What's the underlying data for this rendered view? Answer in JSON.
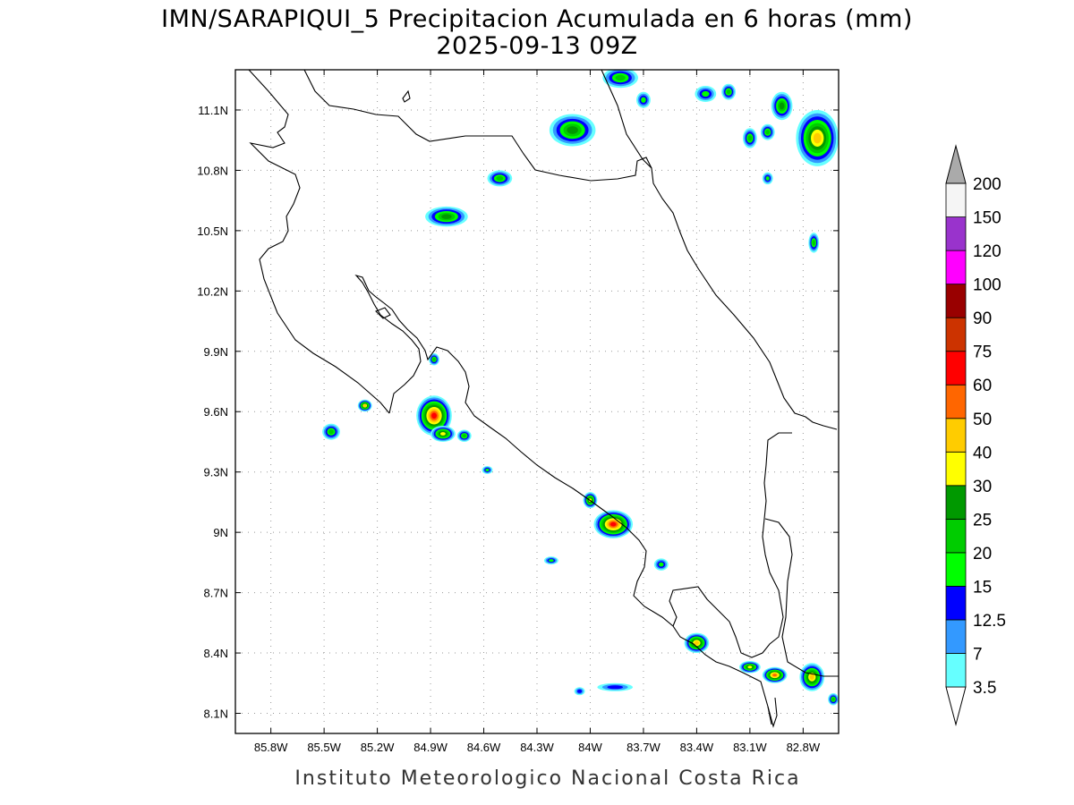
{
  "title": {
    "line1": "IMN/SARAPIQUI_5 Precipitacion Acumulada en 6 horas (mm)",
    "line2": "2025-09-13 09Z"
  },
  "credit": "Instituto Meteorologico Nacional Costa Rica",
  "map": {
    "lon_range": [
      -86.0,
      -82.6
    ],
    "lat_range": [
      8.0,
      11.3
    ],
    "lon_ticks": [
      {
        "value": -85.8,
        "label": "85.8W"
      },
      {
        "value": -85.5,
        "label": "85.5W"
      },
      {
        "value": -85.2,
        "label": "85.2W"
      },
      {
        "value": -84.9,
        "label": "84.9W"
      },
      {
        "value": -84.6,
        "label": "84.6W"
      },
      {
        "value": -84.3,
        "label": "84.3W"
      },
      {
        "value": -84.0,
        "label": "84W"
      },
      {
        "value": -83.7,
        "label": "83.7W"
      },
      {
        "value": -83.4,
        "label": "83.4W"
      },
      {
        "value": -83.1,
        "label": "83.1W"
      },
      {
        "value": -82.8,
        "label": "82.8W"
      }
    ],
    "lat_ticks": [
      {
        "value": 8.1,
        "label": "8.1N"
      },
      {
        "value": 8.4,
        "label": "8.4N"
      },
      {
        "value": 8.7,
        "label": "8.7N"
      },
      {
        "value": 9.0,
        "label": "9N"
      },
      {
        "value": 9.3,
        "label": "9.3N"
      },
      {
        "value": 9.6,
        "label": "9.6N"
      },
      {
        "value": 9.9,
        "label": "9.9N"
      },
      {
        "value": 10.2,
        "label": "10.2N"
      },
      {
        "value": 10.5,
        "label": "10.5N"
      },
      {
        "value": 10.8,
        "label": "10.8N"
      },
      {
        "value": 11.1,
        "label": "11.1N"
      }
    ],
    "grid": true
  },
  "legend": {
    "bins": [
      {
        "label": "3.5",
        "color": "#66ffff"
      },
      {
        "label": "7",
        "color": "#3399ff"
      },
      {
        "label": "12.5",
        "color": "#0000ff"
      },
      {
        "label": "15",
        "color": "#00ff00"
      },
      {
        "label": "20",
        "color": "#00cc00"
      },
      {
        "label": "25",
        "color": "#009900"
      },
      {
        "label": "30",
        "color": "#ffff00"
      },
      {
        "label": "40",
        "color": "#ffcc00"
      },
      {
        "label": "50",
        "color": "#ff6600"
      },
      {
        "label": "60",
        "color": "#ff0000"
      },
      {
        "label": "75",
        "color": "#cc3300"
      },
      {
        "label": "90",
        "color": "#990000"
      },
      {
        "label": "100",
        "color": "#ff00ff"
      },
      {
        "label": "120",
        "color": "#9933cc"
      },
      {
        "label": "150",
        "color": "#f5f5f5"
      },
      {
        "label": "200",
        "color": "#aaaaaa"
      }
    ],
    "below_color": "#ffffff",
    "above_color": "#aaaaaa"
  },
  "cells": [
    {
      "lon": -84.1,
      "lat": 11.0,
      "rx": 0.13,
      "ry": 0.08,
      "level": 5
    },
    {
      "lon": -83.83,
      "lat": 11.26,
      "rx": 0.1,
      "ry": 0.05,
      "level": 4
    },
    {
      "lon": -83.7,
      "lat": 11.15,
      "rx": 0.04,
      "ry": 0.04,
      "level": 3
    },
    {
      "lon": -83.35,
      "lat": 11.18,
      "rx": 0.06,
      "ry": 0.04,
      "level": 3
    },
    {
      "lon": -83.22,
      "lat": 11.19,
      "rx": 0.04,
      "ry": 0.04,
      "level": 4
    },
    {
      "lon": -82.92,
      "lat": 11.12,
      "rx": 0.06,
      "ry": 0.07,
      "level": 5
    },
    {
      "lon": -82.72,
      "lat": 10.96,
      "rx": 0.12,
      "ry": 0.14,
      "level": 7
    },
    {
      "lon": -83.1,
      "lat": 10.96,
      "rx": 0.04,
      "ry": 0.05,
      "level": 4
    },
    {
      "lon": -83.0,
      "lat": 10.99,
      "rx": 0.04,
      "ry": 0.04,
      "level": 4
    },
    {
      "lon": -83.0,
      "lat": 10.76,
      "rx": 0.03,
      "ry": 0.03,
      "level": 3
    },
    {
      "lon": -82.74,
      "lat": 10.44,
      "rx": 0.03,
      "ry": 0.05,
      "level": 4
    },
    {
      "lon": -84.51,
      "lat": 10.76,
      "rx": 0.07,
      "ry": 0.04,
      "level": 4
    },
    {
      "lon": -84.81,
      "lat": 10.57,
      "rx": 0.12,
      "ry": 0.05,
      "level": 5
    },
    {
      "lon": -84.88,
      "lat": 9.86,
      "rx": 0.03,
      "ry": 0.03,
      "level": 4
    },
    {
      "lon": -84.88,
      "lat": 9.58,
      "rx": 0.1,
      "ry": 0.1,
      "level": 9
    },
    {
      "lon": -84.83,
      "lat": 9.49,
      "rx": 0.07,
      "ry": 0.04,
      "level": 6
    },
    {
      "lon": -84.71,
      "lat": 9.48,
      "rx": 0.04,
      "ry": 0.03,
      "level": 4
    },
    {
      "lon": -85.27,
      "lat": 9.63,
      "rx": 0.04,
      "ry": 0.03,
      "level": 7
    },
    {
      "lon": -85.46,
      "lat": 9.5,
      "rx": 0.05,
      "ry": 0.04,
      "level": 4
    },
    {
      "lon": -84.58,
      "lat": 9.31,
      "rx": 0.03,
      "ry": 0.02,
      "level": 3
    },
    {
      "lon": -84.0,
      "lat": 9.16,
      "rx": 0.04,
      "ry": 0.04,
      "level": 6
    },
    {
      "lon": -83.87,
      "lat": 9.04,
      "rx": 0.11,
      "ry": 0.07,
      "level": 9
    },
    {
      "lon": -84.22,
      "lat": 8.86,
      "rx": 0.04,
      "ry": 0.02,
      "level": 3
    },
    {
      "lon": -83.6,
      "lat": 8.84,
      "rx": 0.04,
      "ry": 0.03,
      "level": 3
    },
    {
      "lon": -83.4,
      "lat": 8.45,
      "rx": 0.07,
      "ry": 0.05,
      "level": 7
    },
    {
      "lon": -83.1,
      "lat": 8.33,
      "rx": 0.06,
      "ry": 0.03,
      "level": 6
    },
    {
      "lon": -82.96,
      "lat": 8.29,
      "rx": 0.07,
      "ry": 0.04,
      "level": 8
    },
    {
      "lon": -82.75,
      "lat": 8.28,
      "rx": 0.07,
      "ry": 0.07,
      "level": 7
    },
    {
      "lon": -83.86,
      "lat": 8.23,
      "rx": 0.1,
      "ry": 0.02,
      "level": 2
    },
    {
      "lon": -84.06,
      "lat": 8.21,
      "rx": 0.03,
      "ry": 0.02,
      "level": 2
    },
    {
      "lon": -82.63,
      "lat": 8.17,
      "rx": 0.03,
      "ry": 0.03,
      "level": 4
    }
  ]
}
